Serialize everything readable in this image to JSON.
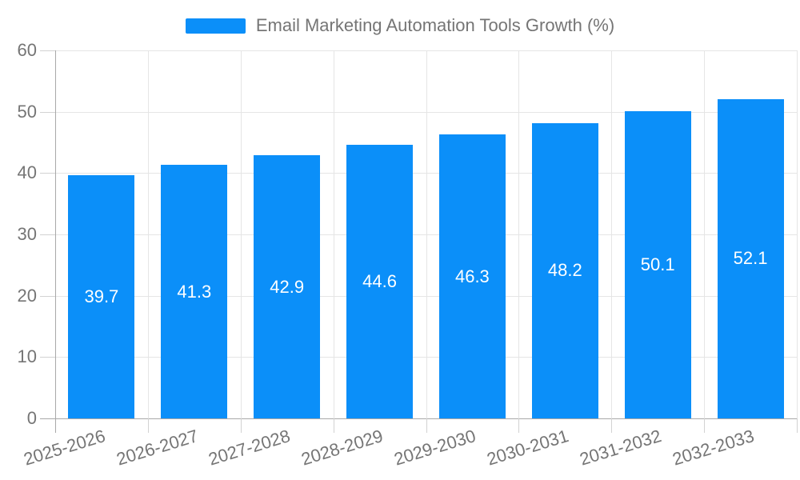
{
  "legend": {
    "label": "Email Marketing Automation Tools Growth (%)",
    "swatch_color": "#0b8ff9"
  },
  "chart_data": {
    "type": "bar",
    "categories": [
      "2025-2026",
      "2026-2027",
      "2027-2028",
      "2028-2029",
      "2029-2030",
      "2030-2031",
      "2031-2032",
      "2032-2033"
    ],
    "values": [
      39.7,
      41.3,
      42.9,
      44.6,
      46.3,
      48.2,
      50.1,
      52.1
    ],
    "value_labels": [
      "39.7",
      "41.3",
      "42.9",
      "44.6",
      "46.3",
      "48.2",
      "50.1",
      "52.1"
    ],
    "series_name": "Email Marketing Automation Tools Growth (%)",
    "legend_entries": [
      "Email Marketing Automation Tools Growth (%)"
    ],
    "legend_position": "top",
    "xlabel": "",
    "ylabel": "",
    "ylim": [
      0,
      60
    ],
    "yticks": [
      0,
      10,
      20,
      30,
      40,
      50,
      60
    ],
    "grid": true
  },
  "colors": {
    "bar": "#0b8ff9",
    "grid_line": "#e5e5e5",
    "axis_line": "#a8a8a8",
    "tick_line": "#d2d2d2",
    "axis_text": "#757575",
    "value_text": "#ffffff",
    "background": "#ffffff"
  }
}
